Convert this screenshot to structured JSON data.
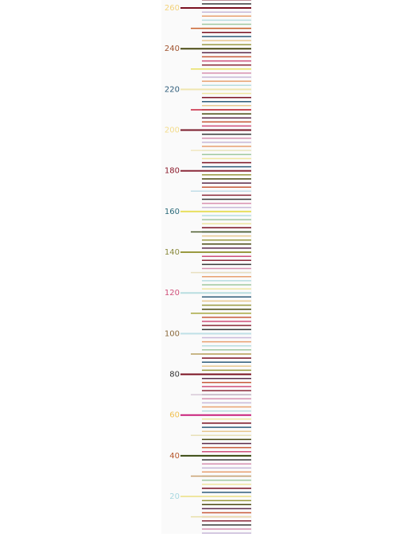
{
  "ruler": {
    "ticks": [
      {
        "value": 260,
        "label_color": "#f3d27a",
        "line_color": "#7a1020"
      },
      {
        "value": 240,
        "label_color": "#a0522d",
        "line_color": "#4a4a12"
      },
      {
        "value": 220,
        "label_color": "#2e5c7a",
        "line_color": "#efe6b0"
      },
      {
        "value": 200,
        "label_color": "#f3dc8c",
        "line_color": "#7a1a2a"
      },
      {
        "value": 180,
        "label_color": "#8b1a2b",
        "line_color": "#8b2a3a"
      },
      {
        "value": 160,
        "label_color": "#2b6a7a",
        "line_color": "#e8e060"
      },
      {
        "value": 140,
        "label_color": "#8a8a3c",
        "line_color": "#9a9a40"
      },
      {
        "value": 120,
        "label_color": "#d0507a",
        "line_color": "#b8dde0"
      },
      {
        "value": 100,
        "label_color": "#8b6a3c",
        "line_color": "#bfe0e6"
      },
      {
        "value": 80,
        "label_color": "#333333",
        "line_color": "#7a1020"
      },
      {
        "value": 60,
        "label_color": "#f0c050",
        "line_color": "#c8207a"
      },
      {
        "value": 40,
        "label_color": "#b5552a",
        "line_color": "#3a4a12"
      },
      {
        "value": 20,
        "label_color": "#a8d8e0",
        "line_color": "#efe6a0"
      }
    ]
  }
}
